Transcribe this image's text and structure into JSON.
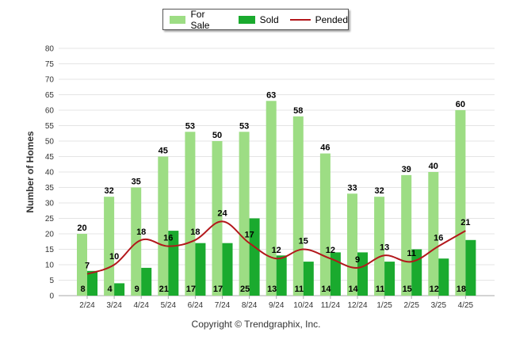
{
  "legend": {
    "for_sale": "For Sale",
    "sold": "Sold",
    "pended": "Pended"
  },
  "copyright": "Copyright © Trendgraphix, Inc.",
  "colors": {
    "for_sale": "#9ddd84",
    "sold": "#1aaa2e",
    "pended": "#b3171b",
    "grid": "#e4e4e4"
  },
  "chart_data": {
    "type": "bar",
    "title": "",
    "xlabel": "",
    "ylabel": "Number of Homes",
    "ylim": [
      0,
      80
    ],
    "yticks": [
      0,
      5,
      10,
      15,
      20,
      25,
      30,
      35,
      40,
      45,
      50,
      55,
      60,
      65,
      70,
      75,
      80
    ],
    "grid": true,
    "legend_position": "top-center",
    "categories": [
      "2/24",
      "3/24",
      "4/24",
      "5/24",
      "6/24",
      "7/24",
      "8/24",
      "9/24",
      "10/24",
      "11/24",
      "12/24",
      "1/25",
      "2/25",
      "3/25",
      "4/25"
    ],
    "series": [
      {
        "name": "For Sale",
        "type": "bar",
        "values": [
          20,
          32,
          35,
          45,
          53,
          50,
          53,
          63,
          58,
          46,
          33,
          32,
          39,
          40,
          60
        ]
      },
      {
        "name": "Sold",
        "type": "bar",
        "values": [
          8,
          4,
          9,
          21,
          17,
          17,
          25,
          13,
          11,
          14,
          14,
          11,
          15,
          12,
          18
        ]
      },
      {
        "name": "Pended",
        "type": "line",
        "values": [
          7,
          10,
          18,
          16,
          18,
          24,
          17,
          12,
          15,
          12,
          9,
          13,
          11,
          16,
          21
        ]
      }
    ]
  }
}
